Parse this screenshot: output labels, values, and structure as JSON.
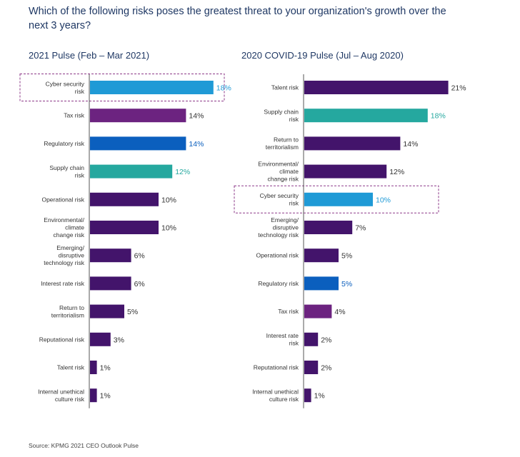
{
  "question": "Which of the following risks poses the greatest threat to your organization's growth over the next 3 years?",
  "source": "Source: KPMG 2021 CEO Outlook Pulse",
  "colors": {
    "purple_dark": "#43146b",
    "purple_mid": "#6c2380",
    "blue_dark": "#0b5fbe",
    "teal": "#25a89f",
    "light_blue": "#1f9ad6",
    "highlight_border": "#8e3a8a",
    "axis": "#555555"
  },
  "chart_data": [
    {
      "type": "bar",
      "orientation": "horizontal",
      "title": "2021 Pulse (Feb – Mar 2021)",
      "unit": "%",
      "categories": [
        [
          "Cyber security",
          "risk"
        ],
        [
          "Tax risk"
        ],
        [
          "Regulatory risk"
        ],
        [
          "Supply chain",
          "risk"
        ],
        [
          "Operational risk"
        ],
        [
          "Environmental/",
          "climate",
          "change risk"
        ],
        [
          "Emerging/",
          "disruptive",
          "technology risk"
        ],
        [
          "Interest rate risk"
        ],
        [
          "Return to",
          "territorialism"
        ],
        [
          "Reputational risk"
        ],
        [
          "Talent risk"
        ],
        [
          "Internal unethical",
          "culture risk"
        ]
      ],
      "values": [
        18,
        14,
        14,
        12,
        10,
        10,
        6,
        6,
        5,
        3,
        1,
        1
      ],
      "colors": [
        "light_blue",
        "purple_mid",
        "blue_dark",
        "teal",
        "purple_dark",
        "purple_dark",
        "purple_dark",
        "purple_dark",
        "purple_dark",
        "purple_dark",
        "purple_dark",
        "purple_dark"
      ],
      "highlight_index": 0
    },
    {
      "type": "bar",
      "orientation": "horizontal",
      "title": "2020 COVID-19 Pulse (Jul – Aug 2020)",
      "unit": "%",
      "categories": [
        [
          "Talent risk"
        ],
        [
          "Supply chain",
          "risk"
        ],
        [
          "Return to",
          "territorialism"
        ],
        [
          "Environmental/",
          "climate",
          "change risk"
        ],
        [
          "Cyber security",
          "risk"
        ],
        [
          "Emerging/",
          "disruptive",
          "technology risk"
        ],
        [
          "Operational risk"
        ],
        [
          "Regulatory risk"
        ],
        [
          "Tax risk"
        ],
        [
          "Interest rate",
          "risk"
        ],
        [
          "Reputational risk"
        ],
        [
          "Internal unethical",
          "culture risk"
        ]
      ],
      "values": [
        21,
        18,
        14,
        12,
        10,
        7,
        5,
        5,
        4,
        2,
        2,
        1
      ],
      "colors": [
        "purple_dark",
        "teal",
        "purple_dark",
        "purple_dark",
        "light_blue",
        "purple_dark",
        "purple_dark",
        "blue_dark",
        "purple_mid",
        "purple_dark",
        "purple_dark",
        "purple_dark"
      ],
      "highlight_index": 4
    }
  ]
}
